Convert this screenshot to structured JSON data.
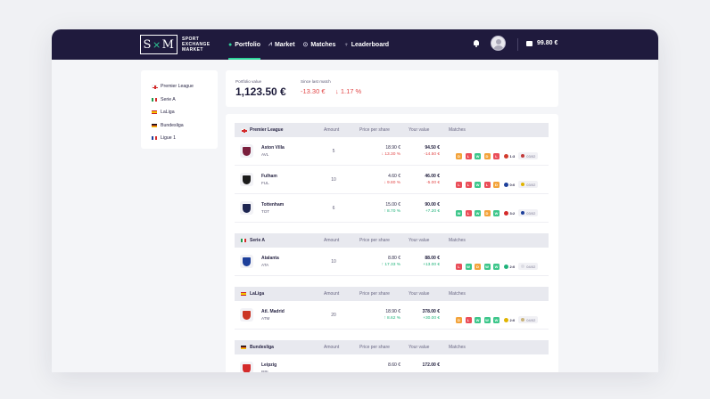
{
  "app": {
    "logo_mark_left": "S",
    "logo_mark_x": "×",
    "logo_mark_right": "M",
    "logo_text_1": "SPORT",
    "logo_text_2": "EXCHANGE",
    "logo_text_3": "MARKET"
  },
  "nav": [
    {
      "label": "Portfolio",
      "icon": "person-icon",
      "glyph": "👤"
    },
    {
      "label": "Market",
      "icon": "chart-icon",
      "glyph": "⩘"
    },
    {
      "label": "Matches",
      "icon": "clock-icon",
      "glyph": "⊙"
    },
    {
      "label": "Leaderboard",
      "icon": "trophy-icon",
      "glyph": "🏆"
    }
  ],
  "wallet": {
    "balance": "99.80 €"
  },
  "sidebar": {
    "items": [
      {
        "label": "Premier League",
        "flag": "england"
      },
      {
        "label": "Serie A",
        "flag": "italy"
      },
      {
        "label": "LaLiga",
        "flag": "spain"
      },
      {
        "label": "Bundesliga",
        "flag": "germany"
      },
      {
        "label": "Ligue 1",
        "flag": "france"
      }
    ]
  },
  "portfolio": {
    "value_label": "Portfolio value",
    "value": "1,123.50 €",
    "since_label": "Since last match",
    "since_value": "-13.30 €",
    "since_pct": "↓ 1.17 %"
  },
  "table_headers": {
    "amount": "Amount",
    "price_per_share": "Price per share",
    "your_value": "Your value",
    "matches": "Matches"
  },
  "leagues": [
    {
      "name": "Premier League",
      "flag": "england",
      "teams": [
        {
          "name": "Aston Villa",
          "code": "AVL",
          "amount": "5",
          "price": "18.90 €",
          "price_change": "↓ 13.30 %",
          "value": "94.50 €",
          "value_change": "-14.50 €",
          "trend": "down",
          "crest": "#7a1f3d",
          "results": [
            "D",
            "L",
            "W",
            "D",
            "L"
          ],
          "score": "1:3",
          "score_opp": "#d23b2c",
          "next": "03/02",
          "next_opp": "#c23a3a"
        },
        {
          "name": "Fulham",
          "code": "FUL",
          "amount": "10",
          "price": "4.60 €",
          "price_change": "↓ 9.80 %",
          "value": "46.00 €",
          "value_change": "-5.00 €",
          "trend": "down",
          "crest": "#1b1b1b",
          "results": [
            "L",
            "L",
            "W",
            "L",
            "D"
          ],
          "score": "0:0",
          "score_opp": "#1d3f9a",
          "next": "03/02",
          "next_opp": "#e0b400"
        },
        {
          "name": "Tottenham",
          "code": "TOT",
          "amount": "6",
          "price": "15.00 €",
          "price_change": "↑ 8.70 %",
          "value": "90.00 €",
          "value_change": "+7.20 €",
          "trend": "up",
          "crest": "#1d2551",
          "results": [
            "W",
            "L",
            "W",
            "D",
            "W"
          ],
          "score": "3:2",
          "score_opp": "#d42a2a",
          "next": "03/02",
          "next_opp": "#1d3f9a"
        }
      ]
    },
    {
      "name": "Serie A",
      "flag": "italy",
      "teams": [
        {
          "name": "Atalanta",
          "code": "ATA",
          "amount": "10",
          "price": "8.80 €",
          "price_change": "↑ 17.33 %",
          "value": "88.00 €",
          "value_change": "+13.00 €",
          "trend": "up",
          "crest": "#1d3f9a",
          "results": [
            "L",
            "W",
            "D",
            "W",
            "W"
          ],
          "score": "2:0",
          "score_opp": "#1fb27a",
          "next": "04/02",
          "next_opp": "#dcdce4"
        }
      ]
    },
    {
      "name": "LaLiga",
      "flag": "spain",
      "teams": [
        {
          "name": "Atl. Madrid",
          "code": "ATM",
          "amount": "20",
          "price": "18.90 €",
          "price_change": "↑ 8.62 %",
          "value": "378.00 €",
          "value_change": "+30.00 €",
          "trend": "up",
          "crest": "#cb3524",
          "results": [
            "D",
            "L",
            "W",
            "W",
            "W"
          ],
          "score": "2:0",
          "score_opp": "#e0b400",
          "next": "04/02",
          "next_opp": "#c9b37a"
        }
      ]
    },
    {
      "name": "Bundesliga",
      "flag": "germany",
      "teams": [
        {
          "name": "Leipzig",
          "code": "RBL",
          "amount": "",
          "price": "8.60 €",
          "price_change": "",
          "value": "172.00 €",
          "value_change": "",
          "trend": "up",
          "crest": "#d42a2a",
          "results": [],
          "score": "",
          "score_opp": "#ffffff",
          "next": "",
          "next_opp": "#ffffff"
        }
      ]
    }
  ]
}
